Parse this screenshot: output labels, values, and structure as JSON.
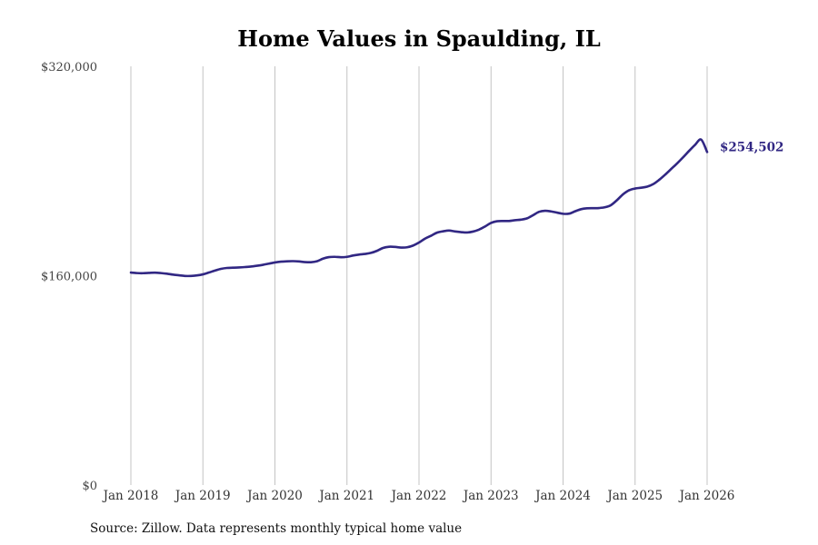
{
  "chart_data": {
    "type": "line",
    "title": "Home Values in Spaulding, IL",
    "xlabel": "",
    "ylabel": "",
    "ylim": [
      0,
      320000
    ],
    "yticks": [
      {
        "value": 0,
        "label": "$0"
      },
      {
        "value": 160000,
        "label": "$160,000"
      },
      {
        "value": 320000,
        "label": "$320,000"
      }
    ],
    "xticks": [
      {
        "value": 2018.0,
        "label": "Jan 2018"
      },
      {
        "value": 2019.0,
        "label": "Jan 2019"
      },
      {
        "value": 2020.0,
        "label": "Jan 2020"
      },
      {
        "value": 2021.0,
        "label": "Jan 2021"
      },
      {
        "value": 2022.0,
        "label": "Jan 2022"
      },
      {
        "value": 2023.0,
        "label": "Jan 2023"
      },
      {
        "value": 2024.0,
        "label": "Jan 2024"
      },
      {
        "value": 2025.0,
        "label": "Jan 2025"
      },
      {
        "value": 2026.0,
        "label": "Jan 2026"
      }
    ],
    "xlim": [
      2017.85,
      2027.0
    ],
    "grid": "vertical",
    "legend": "none",
    "series": [
      {
        "name": "Typical home value",
        "color": "#312783",
        "x": [
          2018.0,
          2018.083,
          2018.167,
          2018.25,
          2018.333,
          2018.417,
          2018.5,
          2018.583,
          2018.667,
          2018.75,
          2018.833,
          2018.917,
          2019.0,
          2019.083,
          2019.167,
          2019.25,
          2019.333,
          2019.417,
          2019.5,
          2019.583,
          2019.667,
          2019.75,
          2019.833,
          2019.917,
          2020.0,
          2020.083,
          2020.167,
          2020.25,
          2020.333,
          2020.417,
          2020.5,
          2020.583,
          2020.667,
          2020.75,
          2020.833,
          2020.917,
          2021.0,
          2021.083,
          2021.167,
          2021.25,
          2021.333,
          2021.417,
          2021.5,
          2021.583,
          2021.667,
          2021.75,
          2021.833,
          2021.917,
          2022.0,
          2022.083,
          2022.167,
          2022.25,
          2022.333,
          2022.417,
          2022.5,
          2022.583,
          2022.667,
          2022.75,
          2022.833,
          2022.917,
          2023.0,
          2023.083,
          2023.167,
          2023.25,
          2023.333,
          2023.417,
          2023.5,
          2023.583,
          2023.667,
          2023.75,
          2023.833,
          2023.917,
          2024.0,
          2024.083,
          2024.167,
          2024.25,
          2024.333,
          2024.417,
          2024.5,
          2024.583,
          2024.667,
          2024.75,
          2024.833,
          2024.917,
          2025.0,
          2025.083,
          2025.167,
          2025.25,
          2025.333,
          2025.417,
          2025.5,
          2025.583,
          2025.667,
          2025.75,
          2025.833,
          2025.917,
          2026.0
        ],
        "values": [
          162400,
          162000,
          161900,
          162100,
          162300,
          162000,
          161500,
          160800,
          160300,
          159800,
          159800,
          160200,
          161000,
          162400,
          163900,
          165200,
          165900,
          166100,
          166300,
          166600,
          167000,
          167600,
          168300,
          169200,
          170100,
          170700,
          171000,
          171100,
          170900,
          170400,
          170300,
          171000,
          173000,
          174200,
          174400,
          174100,
          174400,
          175400,
          176100,
          176600,
          177400,
          179000,
          181200,
          182100,
          182000,
          181500,
          181700,
          183000,
          185300,
          188300,
          190500,
          192900,
          193900,
          194500,
          193800,
          193300,
          193000,
          193700,
          195200,
          197600,
          200300,
          201600,
          201800,
          201800,
          202400,
          202800,
          203800,
          206200,
          208800,
          209600,
          209100,
          208200,
          207300,
          207400,
          209200,
          210800,
          211500,
          211600,
          211700,
          212300,
          214000,
          217800,
          222200,
          225300,
          226600,
          227200,
          228000,
          229900,
          233200,
          237200,
          241500,
          245800,
          250500,
          255400,
          260000,
          264000,
          254502
        ],
        "end_label": "$254,502"
      }
    ]
  },
  "source_note": "Source: Zillow. Data represents monthly typical home value"
}
